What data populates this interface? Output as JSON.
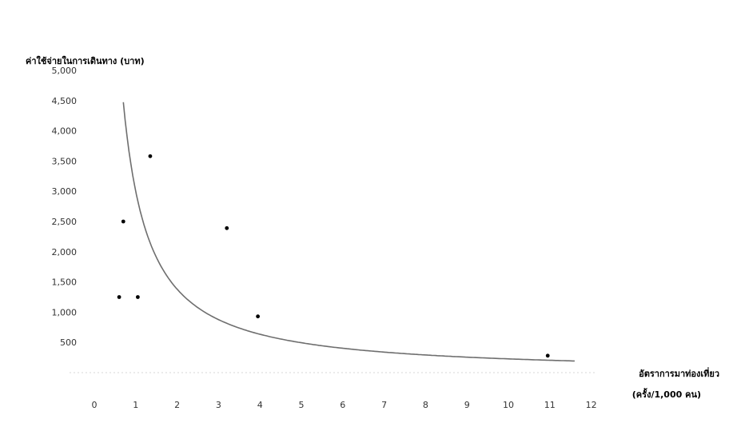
{
  "chart_data": {
    "type": "scatter",
    "title": "",
    "ylabel": "ค่าใช้จ่ายในการเดินทาง (บาท)",
    "xlabel_line1": "อัตราการมาท่องเที่ยว",
    "xlabel_line2": "(ครั้ง/1,000 คน)",
    "xlim": [
      0,
      12
    ],
    "ylim": [
      0,
      5000
    ],
    "x_ticks": [
      "0",
      "1",
      "2",
      "3",
      "4",
      "5",
      "6",
      "7",
      "8",
      "9",
      "10",
      "11",
      "12"
    ],
    "y_ticks": [
      "5,000",
      "4,500",
      "4,000",
      "3,500",
      "3,000",
      "2,500",
      "2,000",
      "1,500",
      "1,000",
      "500"
    ],
    "y_tick_values": [
      5000,
      4500,
      4000,
      3500,
      3000,
      2500,
      2000,
      1500,
      1000,
      500
    ],
    "grid": false,
    "series": [
      {
        "kind": "points",
        "x": [
          0.6,
          0.7,
          1.05,
          1.35,
          3.2,
          3.95,
          10.95
        ],
        "y": [
          1250,
          2500,
          1250,
          3580,
          2390,
          930,
          280
        ]
      },
      {
        "kind": "trendline",
        "fit": "power",
        "x_range": [
          0.7,
          11.6
        ],
        "coef": 3000,
        "exp": -1.12
      }
    ],
    "colors": {
      "points": "#000000",
      "trendline": "#6e6e6e"
    }
  }
}
